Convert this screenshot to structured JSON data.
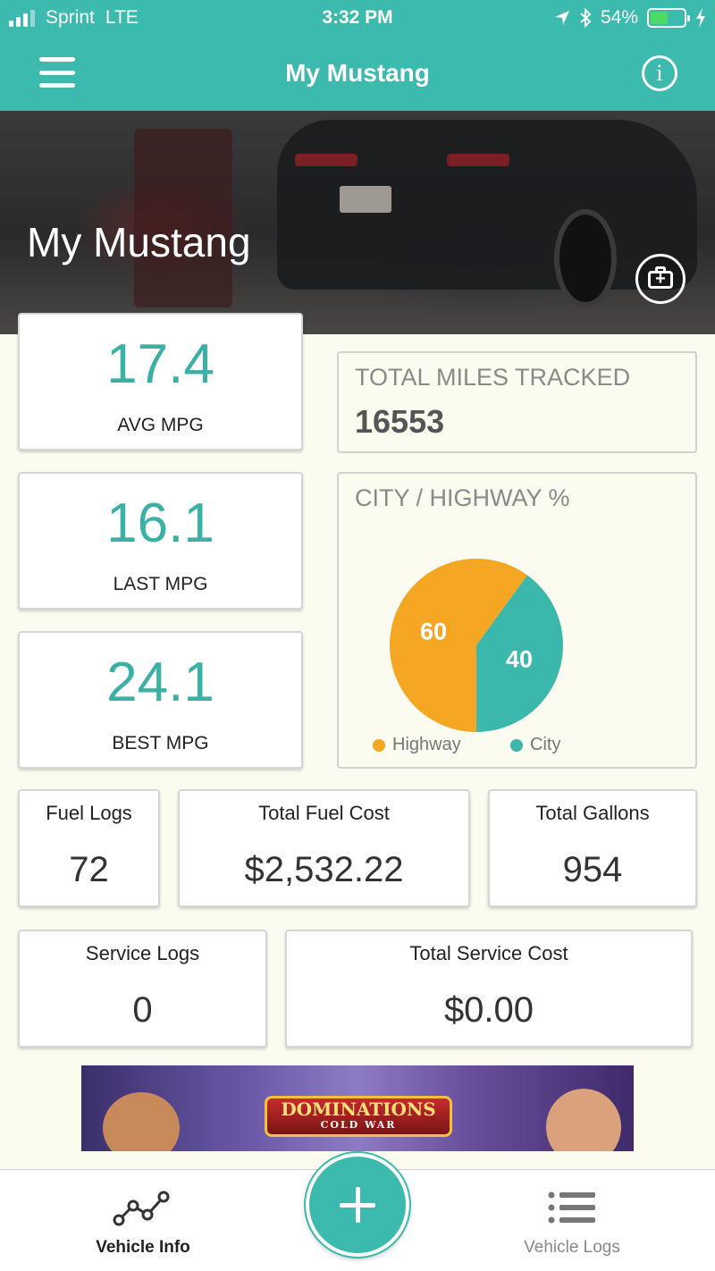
{
  "status": {
    "carrier": "Sprint",
    "network": "LTE",
    "time": "3:32 PM",
    "battery": "54%",
    "battery_level": 0.54,
    "icons": [
      "location-icon",
      "bluetooth-icon",
      "battery-icon",
      "charging-icon"
    ]
  },
  "nav": {
    "title": "My Mustang",
    "menu_icon": "hamburger-icon",
    "info_icon": "info-icon",
    "info_glyph": "i"
  },
  "hero": {
    "title": "My Mustang",
    "camera_icon": "camera-add-icon"
  },
  "stats": {
    "avg_mpg": {
      "value": "17.4",
      "label": "AVG MPG"
    },
    "last_mpg": {
      "value": "16.1",
      "label": "LAST MPG"
    },
    "best_mpg": {
      "value": "24.1",
      "label": "BEST MPG"
    },
    "total_miles": {
      "label": "TOTAL MILES TRACKED",
      "value": "16553"
    },
    "fuel_logs": {
      "label": "Fuel Logs",
      "value": "72"
    },
    "total_fuel_cost": {
      "label": "Total Fuel Cost",
      "value": "$2,532.22"
    },
    "total_gallons": {
      "label": "Total Gallons",
      "value": "954"
    },
    "service_logs": {
      "label": "Service Logs",
      "value": "0"
    },
    "total_service_cost": {
      "label": "Total Service Cost",
      "value": "$0.00"
    }
  },
  "city_highway": {
    "title": "CITY / HIGHWAY %",
    "colors": {
      "highway": "#f5a623",
      "city": "#3bb8ab"
    }
  },
  "chart_data": {
    "type": "pie",
    "title": "CITY / HIGHWAY %",
    "categories": [
      "Highway",
      "City"
    ],
    "values": [
      60,
      40
    ],
    "value_labels": [
      "60",
      "40"
    ],
    "legend": "bottom"
  },
  "ad": {
    "title": "DOMINATIONS",
    "subtitle": "COLD WAR"
  },
  "tabs": {
    "vehicle_info": {
      "label": "Vehicle Info",
      "icon": "line-chart-icon"
    },
    "vehicle_logs": {
      "label": "Vehicle Logs",
      "icon": "list-icon"
    },
    "add_icon": "plus-icon"
  },
  "colors": {
    "accent": "#3bbaad",
    "background": "#fbfbf0",
    "highway": "#f5a623",
    "city": "#3bb8ab"
  }
}
